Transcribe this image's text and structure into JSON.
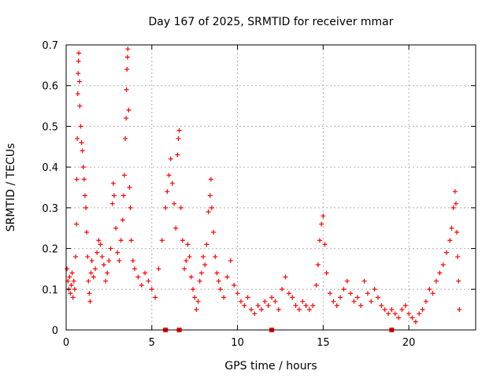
{
  "chart_data": {
    "type": "scatter",
    "title": "Day 167 of 2025, SRMTID for receiver mmar",
    "xlabel": "GPS time / hours",
    "ylabel": "SRMTID / TECUs",
    "xlim": [
      0,
      23.9
    ],
    "ylim": [
      0,
      0.7
    ],
    "xticks": [
      0,
      5,
      10,
      15,
      20
    ],
    "yticks": [
      0,
      0.1,
      0.2,
      0.3,
      0.4,
      0.5,
      0.6,
      0.7
    ],
    "grid": true,
    "marker": "+",
    "color": "#ff0000",
    "gap_markers_x": [
      5.8,
      6.6,
      12.0,
      19.0
    ],
    "series": [
      {
        "name": "SRMTID",
        "points": [
          [
            0.05,
            0.15
          ],
          [
            0.1,
            0.12
          ],
          [
            0.15,
            0.1
          ],
          [
            0.2,
            0.13
          ],
          [
            0.25,
            0.09
          ],
          [
            0.3,
            0.11
          ],
          [
            0.35,
            0.14
          ],
          [
            0.4,
            0.08
          ],
          [
            0.45,
            0.12
          ],
          [
            0.5,
            0.1
          ],
          [
            0.55,
            0.18
          ],
          [
            0.6,
            0.26
          ],
          [
            0.62,
            0.37
          ],
          [
            0.65,
            0.47
          ],
          [
            0.68,
            0.58
          ],
          [
            0.7,
            0.63
          ],
          [
            0.72,
            0.66
          ],
          [
            0.74,
            0.68
          ],
          [
            0.78,
            0.61
          ],
          [
            0.8,
            0.55
          ],
          [
            0.85,
            0.5
          ],
          [
            0.9,
            0.46
          ],
          [
            0.95,
            0.44
          ],
          [
            1.0,
            0.4
          ],
          [
            1.05,
            0.37
          ],
          [
            1.1,
            0.33
          ],
          [
            1.15,
            0.3
          ],
          [
            1.2,
            0.24
          ],
          [
            1.25,
            0.18
          ],
          [
            1.3,
            0.12
          ],
          [
            1.35,
            0.09
          ],
          [
            1.4,
            0.07
          ],
          [
            1.45,
            0.14
          ],
          [
            1.5,
            0.17
          ],
          [
            1.6,
            0.13
          ],
          [
            1.7,
            0.15
          ],
          [
            1.8,
            0.19
          ],
          [
            1.9,
            0.22
          ],
          [
            2.0,
            0.21
          ],
          [
            2.1,
            0.18
          ],
          [
            2.2,
            0.16
          ],
          [
            2.3,
            0.12
          ],
          [
            2.4,
            0.14
          ],
          [
            2.5,
            0.17
          ],
          [
            2.6,
            0.2
          ],
          [
            2.7,
            0.31
          ],
          [
            2.75,
            0.36
          ],
          [
            2.8,
            0.33
          ],
          [
            2.9,
            0.25
          ],
          [
            3.0,
            0.19
          ],
          [
            3.1,
            0.17
          ],
          [
            3.2,
            0.22
          ],
          [
            3.3,
            0.27
          ],
          [
            3.35,
            0.33
          ],
          [
            3.4,
            0.38
          ],
          [
            3.45,
            0.47
          ],
          [
            3.5,
            0.52
          ],
          [
            3.52,
            0.59
          ],
          [
            3.55,
            0.64
          ],
          [
            3.58,
            0.67
          ],
          [
            3.6,
            0.69
          ],
          [
            3.65,
            0.54
          ],
          [
            3.7,
            0.35
          ],
          [
            3.75,
            0.3
          ],
          [
            3.8,
            0.22
          ],
          [
            3.9,
            0.17
          ],
          [
            4.0,
            0.15
          ],
          [
            4.2,
            0.13
          ],
          [
            4.4,
            0.11
          ],
          [
            4.6,
            0.14
          ],
          [
            4.8,
            0.12
          ],
          [
            5.0,
            0.1
          ],
          [
            5.2,
            0.08
          ],
          [
            5.4,
            0.15
          ],
          [
            5.6,
            0.22
          ],
          [
            5.8,
            0.3
          ],
          [
            5.9,
            0.34
          ],
          [
            6.0,
            0.38
          ],
          [
            6.1,
            0.42
          ],
          [
            6.2,
            0.36
          ],
          [
            6.3,
            0.31
          ],
          [
            6.4,
            0.25
          ],
          [
            6.5,
            0.43
          ],
          [
            6.55,
            0.47
          ],
          [
            6.6,
            0.49
          ],
          [
            6.7,
            0.3
          ],
          [
            6.8,
            0.22
          ],
          [
            6.9,
            0.15
          ],
          [
            7.0,
            0.17
          ],
          [
            7.1,
            0.21
          ],
          [
            7.2,
            0.18
          ],
          [
            7.3,
            0.13
          ],
          [
            7.4,
            0.1
          ],
          [
            7.5,
            0.08
          ],
          [
            7.6,
            0.05
          ],
          [
            7.7,
            0.07
          ],
          [
            7.8,
            0.12
          ],
          [
            7.9,
            0.14
          ],
          [
            8.0,
            0.18
          ],
          [
            8.1,
            0.16
          ],
          [
            8.2,
            0.21
          ],
          [
            8.3,
            0.29
          ],
          [
            8.4,
            0.33
          ],
          [
            8.45,
            0.37
          ],
          [
            8.5,
            0.3
          ],
          [
            8.6,
            0.24
          ],
          [
            8.7,
            0.18
          ],
          [
            8.8,
            0.14
          ],
          [
            8.9,
            0.12
          ],
          [
            9.0,
            0.1
          ],
          [
            9.2,
            0.08
          ],
          [
            9.4,
            0.13
          ],
          [
            9.6,
            0.17
          ],
          [
            9.8,
            0.11
          ],
          [
            10.0,
            0.09
          ],
          [
            10.2,
            0.07
          ],
          [
            10.4,
            0.06
          ],
          [
            10.6,
            0.08
          ],
          [
            10.8,
            0.05
          ],
          [
            11.0,
            0.04
          ],
          [
            11.2,
            0.06
          ],
          [
            11.4,
            0.05
          ],
          [
            11.6,
            0.07
          ],
          [
            11.8,
            0.06
          ],
          [
            12.0,
            0.08
          ],
          [
            12.2,
            0.07
          ],
          [
            12.4,
            0.05
          ],
          [
            12.6,
            0.1
          ],
          [
            12.8,
            0.13
          ],
          [
            13.0,
            0.09
          ],
          [
            13.2,
            0.08
          ],
          [
            13.4,
            0.06
          ],
          [
            13.6,
            0.05
          ],
          [
            13.8,
            0.07
          ],
          [
            14.0,
            0.06
          ],
          [
            14.2,
            0.05
          ],
          [
            14.4,
            0.06
          ],
          [
            14.6,
            0.11
          ],
          [
            14.7,
            0.16
          ],
          [
            14.8,
            0.22
          ],
          [
            14.9,
            0.26
          ],
          [
            15.0,
            0.28
          ],
          [
            15.1,
            0.21
          ],
          [
            15.2,
            0.14
          ],
          [
            15.4,
            0.09
          ],
          [
            15.6,
            0.07
          ],
          [
            15.8,
            0.06
          ],
          [
            16.0,
            0.08
          ],
          [
            16.2,
            0.1
          ],
          [
            16.4,
            0.12
          ],
          [
            16.6,
            0.09
          ],
          [
            16.8,
            0.07
          ],
          [
            17.0,
            0.08
          ],
          [
            17.2,
            0.06
          ],
          [
            17.4,
            0.12
          ],
          [
            17.6,
            0.09
          ],
          [
            17.8,
            0.07
          ],
          [
            18.0,
            0.1
          ],
          [
            18.2,
            0.08
          ],
          [
            18.4,
            0.06
          ],
          [
            18.6,
            0.05
          ],
          [
            18.8,
            0.04
          ],
          [
            19.0,
            0.05
          ],
          [
            19.2,
            0.04
          ],
          [
            19.4,
            0.03
          ],
          [
            19.6,
            0.05
          ],
          [
            19.8,
            0.06
          ],
          [
            20.0,
            0.04
          ],
          [
            20.2,
            0.03
          ],
          [
            20.4,
            0.02
          ],
          [
            20.6,
            0.04
          ],
          [
            20.8,
            0.05
          ],
          [
            21.0,
            0.07
          ],
          [
            21.2,
            0.1
          ],
          [
            21.4,
            0.09
          ],
          [
            21.6,
            0.12
          ],
          [
            21.8,
            0.14
          ],
          [
            22.0,
            0.16
          ],
          [
            22.2,
            0.19
          ],
          [
            22.4,
            0.22
          ],
          [
            22.5,
            0.25
          ],
          [
            22.6,
            0.3
          ],
          [
            22.7,
            0.34
          ],
          [
            22.75,
            0.31
          ],
          [
            22.8,
            0.24
          ],
          [
            22.85,
            0.18
          ],
          [
            22.9,
            0.12
          ],
          [
            22.95,
            0.05
          ]
        ]
      }
    ]
  }
}
